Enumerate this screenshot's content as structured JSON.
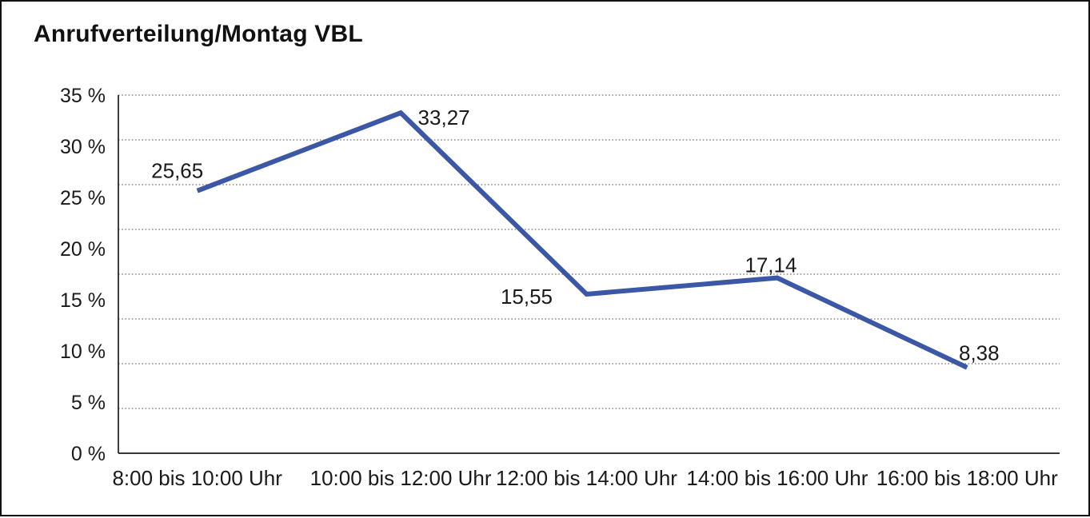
{
  "title": "Anrufverteilung/Montag VBL",
  "chart_data": {
    "type": "line",
    "title": "Anrufverteilung/Montag VBL",
    "categories": [
      "8:00 bis 10:00 Uhr",
      "10:00 bis 12:00 Uhr",
      "12:00 bis 14:00 Uhr",
      "14:00 bis 16:00 Uhr",
      "16:00 bis 18:00 Uhr"
    ],
    "series": [
      {
        "name": "Anrufverteilung Montag VBL",
        "values": [
          25.65,
          33.27,
          15.55,
          17.14,
          8.38
        ],
        "value_labels": [
          "25,65",
          "33,27",
          "15,55",
          "17,14",
          "8,38"
        ]
      }
    ],
    "xlabel": "",
    "ylabel": "",
    "ylim": [
      0,
      35
    ],
    "y_tick_labels": [
      "35 %",
      "30 %",
      "25 %",
      "20 %",
      "15 %",
      "10 %",
      "5 %",
      "0 %"
    ],
    "y_tick_values": [
      35,
      30,
      25,
      20,
      15,
      10,
      5,
      0
    ],
    "grid": "horizontal-dotted",
    "grid_intervals": 8,
    "legend": "none",
    "decimal_separator": ",",
    "colors": {
      "line": "#3B57A6",
      "axis": "#1c1c1c",
      "grid": "#8a8a8a",
      "text": "#1a1a1a",
      "background": "#ffffff",
      "frame_border": "#111111"
    }
  }
}
